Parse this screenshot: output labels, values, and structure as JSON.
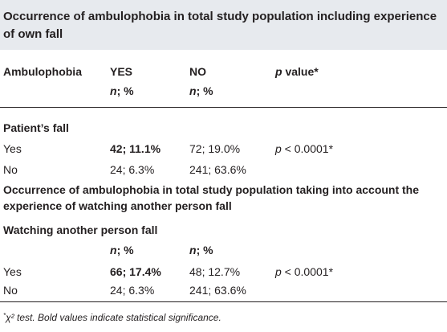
{
  "title": "Occurrence of ambulophobia in total study population including experience of own fall",
  "header": {
    "col1": "Ambulophobia",
    "col2": "YES",
    "col3": "NO",
    "col4_p": "p",
    "col4_rest": " value*",
    "sub_n": "n",
    "sub_pct": "; %"
  },
  "section1": {
    "heading": "Patient’s fall",
    "rows": [
      {
        "label": "Yes",
        "yes": "42; 11.1%",
        "no": "72; 19.0%",
        "p_italic": "p",
        "p_rest": " < 0.0001*"
      },
      {
        "label": "No",
        "yes": "24; 6.3%",
        "no": "241; 63.6%"
      }
    ]
  },
  "section2": {
    "title": "Occurrence of ambulophobia in total study population taking into account the experience of watching another person fall",
    "heading": "Watching another person fall",
    "rows": [
      {
        "label": "Yes",
        "yes": "66; 17.4%",
        "no": "48; 12.7%",
        "p_italic": "p",
        "p_rest": " < 0.0001*"
      },
      {
        "label": "No",
        "yes": "24; 6.3%",
        "no": "241; 63.6%"
      }
    ]
  },
  "footnote": {
    "star": "*",
    "text": "χ² test. Bold values indicate statistical significance."
  }
}
